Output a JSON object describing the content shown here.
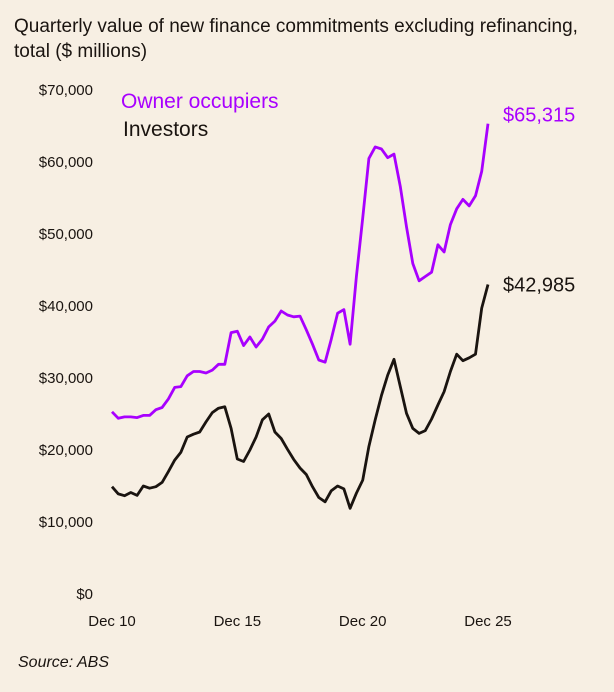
{
  "chart_data": {
    "type": "line",
    "title": "Quarterly value of new finance commitments excluding refinancing, total ($ millions)",
    "source": "Source: ABS",
    "ylim": [
      0,
      70000
    ],
    "yticks": [
      0,
      10000,
      20000,
      30000,
      40000,
      50000,
      60000,
      70000
    ],
    "ytick_labels": [
      "$0",
      "$10,000",
      "$20,000",
      "$30,000",
      "$40,000",
      "$50,000",
      "$60,000",
      "$70,000"
    ],
    "xtick_labels": [
      "Dec 10",
      "Dec 15",
      "Dec 20",
      "Dec 25"
    ],
    "x_start": "Dec 10",
    "x_end": "Dec 25",
    "x_frequency": "quarterly",
    "grid": false,
    "legend_placement": "top-left",
    "series": [
      {
        "name": "Owner occupiers",
        "color": "#a800ff",
        "end_label": "$65,315",
        "values": [
          25300,
          24400,
          24600,
          24600,
          24500,
          24800,
          24800,
          25600,
          25900,
          27100,
          28700,
          28800,
          30300,
          30900,
          30900,
          30700,
          31100,
          31900,
          31900,
          36300,
          36500,
          34500,
          35700,
          34300,
          35400,
          37100,
          37900,
          39300,
          38750,
          38500,
          38600,
          36700,
          34700,
          32500,
          32200,
          35400,
          39000,
          39500,
          34700,
          44100,
          52200,
          60500,
          62100,
          61800,
          60600,
          61100,
          56600,
          51000,
          45900,
          43500,
          44100,
          44700,
          48500,
          47500,
          51300,
          53500,
          54800,
          53900,
          55300,
          58700,
          65315
        ]
      },
      {
        "name": "Investors",
        "color": "#1a1410",
        "end_label": "$42,985",
        "values": [
          14900,
          13900,
          13650,
          14100,
          13700,
          15000,
          14700,
          14900,
          15500,
          17000,
          18600,
          19700,
          21800,
          22200,
          22500,
          23900,
          25200,
          25800,
          26000,
          23000,
          18750,
          18400,
          20000,
          21800,
          24200,
          25000,
          22500,
          21600,
          20100,
          18700,
          17500,
          16600,
          14900,
          13400,
          12800,
          14350,
          15000,
          14600,
          11900,
          14000,
          15800,
          20500,
          24200,
          27600,
          30400,
          32600,
          28800,
          25100,
          23000,
          22300,
          22700,
          24300,
          26250,
          28100,
          30900,
          33300,
          32400,
          32800,
          33300,
          39700,
          42985
        ]
      }
    ]
  }
}
